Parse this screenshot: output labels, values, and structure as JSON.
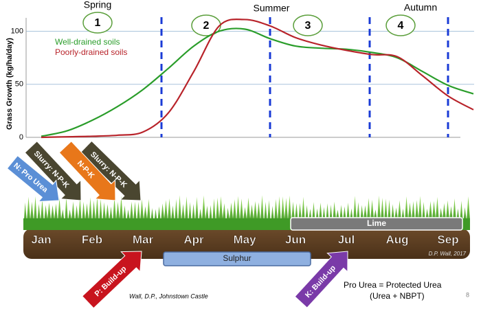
{
  "chart_data": {
    "type": "line",
    "y_label": "Grass Growth (kg/ha/day)",
    "categories": [
      "Jan",
      null,
      "Feb",
      null,
      "Mar",
      null,
      "Apr",
      null,
      "May",
      null,
      "Jun",
      null,
      "Jul",
      null,
      "Aug",
      null,
      "Sep",
      null
    ],
    "series": [
      {
        "name": "Well-drained soils",
        "color": "#2a9d2a",
        "values": [
          1,
          6,
          16,
          29,
          45,
          65,
          86,
          100,
          102,
          93,
          86,
          84,
          83,
          80,
          75,
          62,
          49,
          41
        ]
      },
      {
        "name": "Poorly-drained soils",
        "color": "#b8232a",
        "values": [
          0,
          0.5,
          1,
          2,
          5,
          23,
          62,
          105,
          111,
          105,
          94,
          87,
          82,
          78,
          76,
          58,
          39,
          26
        ]
      }
    ],
    "ylim": [
      0,
      110
    ],
    "yticks": [
      0,
      50,
      100
    ],
    "grid": true,
    "legend": "upper-left",
    "seasons": [
      "Spring",
      "Summer",
      "Autumn"
    ],
    "periods": [
      "1",
      "2",
      "3",
      "4"
    ]
  },
  "nutrients": {
    "arrows": [
      "N: Pro Urea",
      "Slurry: N-P-K",
      "N-P-K",
      "Slurry: N-P-K",
      "P: Build-up",
      "K: Build-up"
    ],
    "lime": "Lime",
    "sulphur": "Sulphur",
    "credit": "D.P. Wall, 2017"
  },
  "footer": {
    "source": "Wall, D.P., Johnstown Castle",
    "note": "Pro Urea = Protected Urea",
    "note_detail": "(Urea + NBPT)",
    "page": "8"
  }
}
